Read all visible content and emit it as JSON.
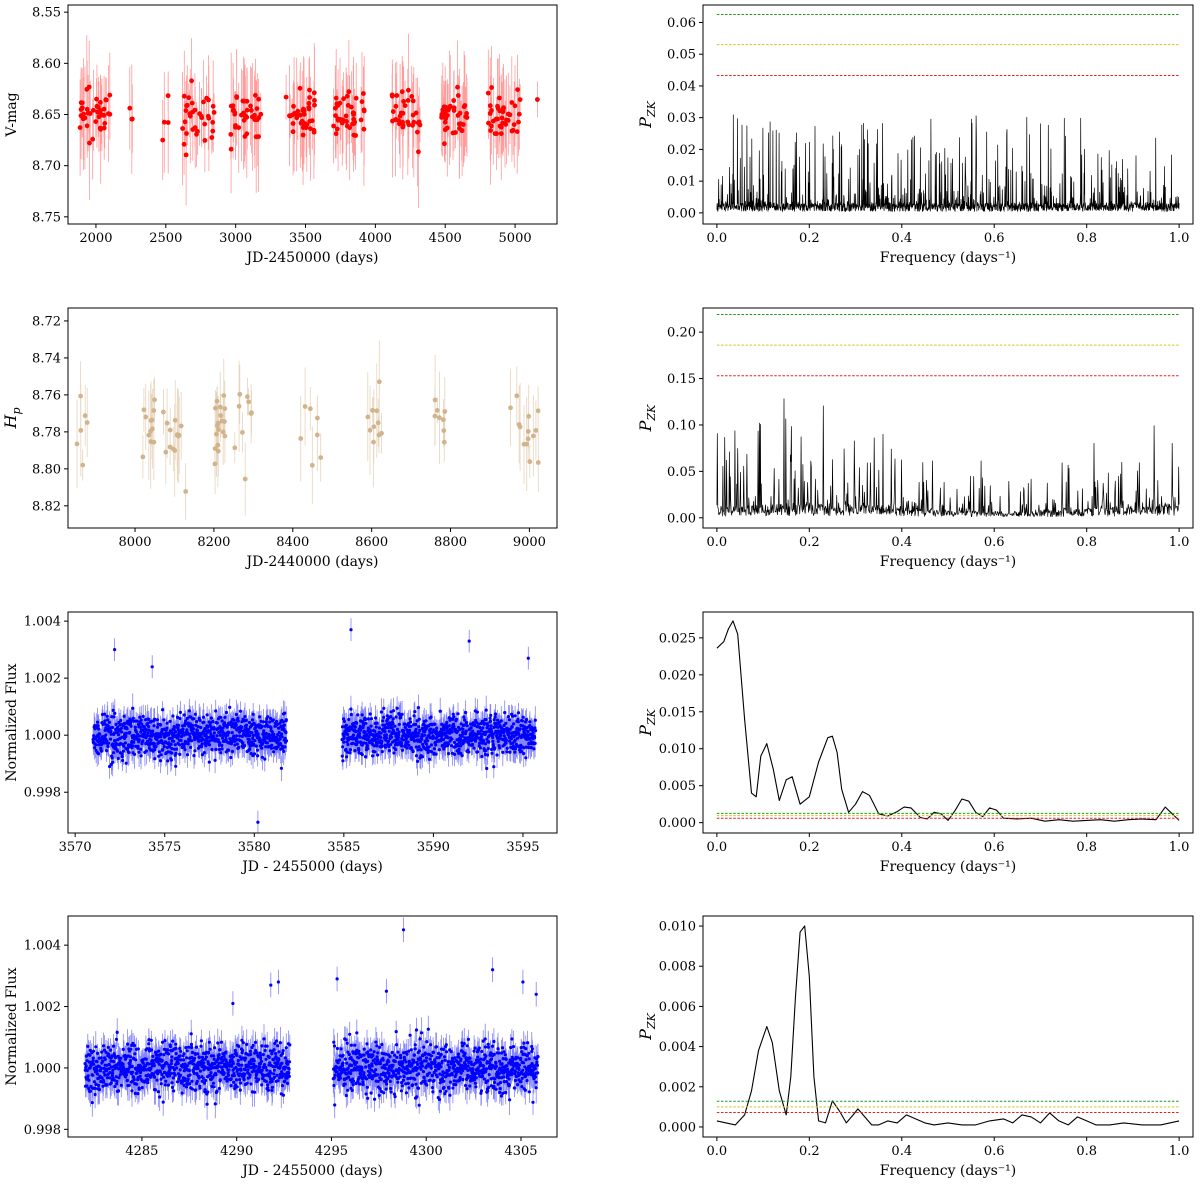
{
  "chart_data": [
    {
      "id": "p1",
      "type": "scatter",
      "title": "",
      "xlabel": "JD-2450000 (days)",
      "ylabel": "V-mag",
      "ylabel_style": "plain",
      "xlim": [
        1800,
        5300
      ],
      "ylim": [
        8.757,
        8.543
      ],
      "y_inverted": true,
      "xticks": [
        2000,
        2500,
        3000,
        3500,
        4000,
        4500,
        5000
      ],
      "yticks": [
        8.55,
        8.6,
        8.65,
        8.7,
        8.75
      ],
      "ytick_decimals": 2,
      "grid": false,
      "legend": "none",
      "marker_color": "#ff0000",
      "errorbar_color": "#ff8a8a",
      "series": [
        {
          "seasons": [
            [
              1880,
              2100,
              40
            ],
            [
              2230,
              2260,
              3
            ],
            [
              2470,
              2520,
              4
            ],
            [
              2620,
              2850,
              35
            ],
            [
              2960,
              3180,
              38
            ],
            [
              3360,
              3580,
              40
            ],
            [
              3700,
              3920,
              40
            ],
            [
              4110,
              4320,
              34
            ],
            [
              4450,
              4660,
              40
            ],
            [
              4800,
              5040,
              42
            ],
            [
              5160,
              5165,
              1
            ]
          ],
          "ymean": 8.65,
          "yspread": 0.012,
          "err_mean": 0.035,
          "err_max": 0.09
        }
      ]
    },
    {
      "id": "p2",
      "type": "line",
      "title": "",
      "xlabel": "Frequency (days⁻¹)",
      "ylabel": "P",
      "ylabel_sub": "ZK",
      "xlim": [
        -0.03,
        1.03
      ],
      "ylim": [
        -0.0035,
        0.0655
      ],
      "xticks": [
        0.0,
        0.2,
        0.4,
        0.6,
        0.8,
        1.0
      ],
      "yticks": [
        0.0,
        0.01,
        0.02,
        0.03,
        0.04,
        0.05,
        0.06
      ],
      "ytick_decimals": 2,
      "grid": false,
      "legend": "none",
      "series": [
        {
          "color": "#000000",
          "shape": "noise",
          "base": 0.003,
          "peak": 0.032,
          "npts": 1800
        }
      ],
      "thresholds": [
        {
          "value": 0.0625,
          "color": "#1a9e1a"
        },
        {
          "value": 0.053,
          "color": "#c9c91f"
        },
        {
          "value": 0.0433,
          "color": "#e62020"
        }
      ]
    },
    {
      "id": "p3",
      "type": "scatter",
      "title": "",
      "xlabel": "JD-2440000 (days)",
      "ylabel": "H",
      "ylabel_sub": "p",
      "xlim": [
        7830,
        9070
      ],
      "ylim": [
        8.832,
        8.713
      ],
      "y_inverted": true,
      "xticks": [
        8000,
        8200,
        8400,
        8600,
        8800,
        9000
      ],
      "yticks": [
        8.72,
        8.74,
        8.76,
        8.78,
        8.8,
        8.82
      ],
      "ytick_decimals": 2,
      "grid": false,
      "legend": "none",
      "marker_color": "#d2b48c",
      "errorbar_color": "#e2cdb0",
      "series": [
        {
          "seasons": [
            [
              7850,
              7880,
              6
            ],
            [
              8020,
              8050,
              12
            ],
            [
              8070,
              8130,
              14
            ],
            [
              8200,
              8230,
              18
            ],
            [
              8250,
              8300,
              9
            ],
            [
              8420,
              8480,
              7
            ],
            [
              8590,
              8650,
              10
            ],
            [
              8760,
              8790,
              8
            ],
            [
              8950,
              9030,
              14
            ]
          ],
          "ymean": 8.777,
          "yspread": 0.01,
          "err_mean": 0.016,
          "err_max": 0.04
        }
      ]
    },
    {
      "id": "p4",
      "type": "line",
      "title": "",
      "xlabel": "Frequency (days⁻¹)",
      "ylabel": "P",
      "ylabel_sub": "ZK",
      "xlim": [
        -0.03,
        1.03
      ],
      "ylim": [
        -0.011,
        0.226
      ],
      "xticks": [
        0.0,
        0.2,
        0.4,
        0.6,
        0.8,
        1.0
      ],
      "yticks": [
        0.0,
        0.05,
        0.1,
        0.15,
        0.2
      ],
      "ytick_decimals": 2,
      "grid": false,
      "legend": "none",
      "series": [
        {
          "color": "#000000",
          "shape": "noise",
          "base": 0.012,
          "peak": 0.11,
          "npts": 1000
        }
      ],
      "thresholds": [
        {
          "value": 0.219,
          "color": "#1a9e1a"
        },
        {
          "value": 0.186,
          "color": "#c9c91f"
        },
        {
          "value": 0.153,
          "color": "#e62020"
        }
      ]
    },
    {
      "id": "p5",
      "type": "scatter",
      "title": "",
      "xlabel": "JD - 2455000 (days)",
      "ylabel": "Normalized Flux",
      "ylabel_style": "plain",
      "xlim": [
        3569.6,
        3596.9
      ],
      "ylim": [
        0.99657,
        1.00432
      ],
      "xticks": [
        3570,
        3575,
        3580,
        3585,
        3590,
        3595
      ],
      "yticks": [
        0.998,
        1.0,
        1.002,
        1.004
      ],
      "ytick_decimals": 3,
      "grid": false,
      "legend": "none",
      "marker_color": "#0000ff",
      "errorbar_color": "#6f6fff",
      "series": [
        {
          "segments": [
            [
              3571.0,
              3581.8
            ],
            [
              3584.9,
              3595.7
            ]
          ],
          "ymean": 1.0,
          "yspread": 0.00035,
          "n_per_segment": 900,
          "err_mean": 0.0004,
          "outliers": [
            [
              3572.2,
              1.003
            ],
            [
              3574.3,
              1.0024
            ],
            [
              3580.2,
              0.99695
            ],
            [
              3585.4,
              1.0037
            ],
            [
              3592.0,
              1.0033
            ],
            [
              3595.3,
              1.0027
            ]
          ]
        }
      ]
    },
    {
      "id": "p6",
      "type": "line",
      "title": "",
      "xlabel": "Frequency (days⁻¹)",
      "ylabel": "P",
      "ylabel_sub": "ZK",
      "xlim": [
        -0.03,
        1.03
      ],
      "ylim": [
        -0.0014,
        0.0285
      ],
      "xticks": [
        0.0,
        0.2,
        0.4,
        0.6,
        0.8,
        1.0
      ],
      "yticks": [
        0.0,
        0.005,
        0.01,
        0.015,
        0.02,
        0.025
      ],
      "ytick_decimals": 3,
      "grid": false,
      "legend": "none",
      "series": [
        {
          "color": "#000000",
          "shape": "curve",
          "x": [
            0.0,
            0.015,
            0.025,
            0.035,
            0.045,
            0.06,
            0.075,
            0.085,
            0.095,
            0.108,
            0.122,
            0.135,
            0.15,
            0.163,
            0.18,
            0.2,
            0.22,
            0.24,
            0.25,
            0.26,
            0.27,
            0.285,
            0.3,
            0.315,
            0.33,
            0.35,
            0.37,
            0.39,
            0.405,
            0.42,
            0.44,
            0.455,
            0.47,
            0.485,
            0.5,
            0.515,
            0.53,
            0.545,
            0.56,
            0.575,
            0.59,
            0.605,
            0.62,
            0.65,
            0.68,
            0.71,
            0.74,
            0.77,
            0.8,
            0.83,
            0.86,
            0.89,
            0.92,
            0.95,
            0.97,
            0.985,
            1.0
          ],
          "y": [
            0.0236,
            0.0245,
            0.0262,
            0.0273,
            0.0255,
            0.014,
            0.004,
            0.0035,
            0.009,
            0.0107,
            0.0072,
            0.003,
            0.0058,
            0.0062,
            0.0025,
            0.0035,
            0.0082,
            0.0115,
            0.0117,
            0.0095,
            0.0045,
            0.0014,
            0.0025,
            0.0042,
            0.0037,
            0.0012,
            0.0009,
            0.0015,
            0.0021,
            0.002,
            0.0007,
            0.0005,
            0.0014,
            0.0012,
            0.0003,
            0.0016,
            0.0032,
            0.0029,
            0.0014,
            0.0008,
            0.002,
            0.0017,
            0.0006,
            0.0005,
            0.0006,
            0.0002,
            0.0004,
            0.0002,
            0.0003,
            0.0004,
            0.0002,
            0.0004,
            0.0005,
            0.0004,
            0.0021,
            0.0012,
            0.0003
          ]
        }
      ],
      "thresholds": [
        {
          "value": 0.00125,
          "color": "#1a9e1a"
        },
        {
          "value": 0.00095,
          "color": "#c9c91f"
        },
        {
          "value": 0.0006,
          "color": "#e62020"
        }
      ]
    },
    {
      "id": "p7",
      "type": "scatter",
      "title": "",
      "xlabel": "JD - 2455000 (days)",
      "ylabel": "Normalized Flux",
      "ylabel_style": "plain",
      "xlim": [
        4281.1,
        4306.9
      ],
      "ylim": [
        0.99775,
        1.00495
      ],
      "xticks": [
        4285,
        4290,
        4295,
        4300,
        4305
      ],
      "yticks": [
        0.998,
        1.0,
        1.002,
        1.004
      ],
      "ytick_decimals": 3,
      "grid": false,
      "legend": "none",
      "marker_color": "#0000ff",
      "errorbar_color": "#6f6fff",
      "series": [
        {
          "segments": [
            [
              4282.0,
              4292.8
            ],
            [
              4295.1,
              4305.9
            ]
          ],
          "ymean": 1.0,
          "yspread": 0.0004,
          "n_per_segment": 900,
          "err_mean": 0.0004,
          "outliers": [
            [
              4289.8,
              1.0021
            ],
            [
              4291.8,
              1.0027
            ],
            [
              4292.2,
              1.0028
            ],
            [
              4295.3,
              1.0029
            ],
            [
              4297.9,
              1.0025
            ],
            [
              4298.8,
              1.0045
            ],
            [
              4303.5,
              1.0032
            ],
            [
              4305.1,
              1.0028
            ],
            [
              4305.8,
              1.0024
            ]
          ]
        }
      ]
    },
    {
      "id": "p8",
      "type": "line",
      "title": "",
      "xlabel": "Frequency (days⁻¹)",
      "ylabel": "P",
      "ylabel_sub": "ZK",
      "xlim": [
        -0.03,
        1.03
      ],
      "ylim": [
        -0.0005,
        0.0105
      ],
      "xticks": [
        0.0,
        0.2,
        0.4,
        0.6,
        0.8,
        1.0
      ],
      "yticks": [
        0.0,
        0.002,
        0.004,
        0.006,
        0.008,
        0.01
      ],
      "ytick_decimals": 3,
      "grid": false,
      "legend": "none",
      "series": [
        {
          "color": "#000000",
          "shape": "curve",
          "x": [
            0.0,
            0.02,
            0.04,
            0.06,
            0.075,
            0.09,
            0.108,
            0.12,
            0.135,
            0.15,
            0.16,
            0.17,
            0.18,
            0.19,
            0.2,
            0.21,
            0.22,
            0.235,
            0.25,
            0.265,
            0.28,
            0.295,
            0.305,
            0.32,
            0.335,
            0.35,
            0.37,
            0.39,
            0.41,
            0.43,
            0.45,
            0.47,
            0.5,
            0.53,
            0.56,
            0.59,
            0.62,
            0.64,
            0.66,
            0.68,
            0.7,
            0.72,
            0.74,
            0.76,
            0.78,
            0.8,
            0.82,
            0.85,
            0.88,
            0.92,
            0.96,
            1.0
          ],
          "y": [
            0.0003,
            0.0002,
            0.0001,
            0.0006,
            0.0018,
            0.0038,
            0.005,
            0.0042,
            0.0018,
            0.0006,
            0.0025,
            0.0065,
            0.0097,
            0.01,
            0.0075,
            0.0025,
            0.0003,
            0.0002,
            0.0013,
            0.0008,
            0.0002,
            0.0006,
            0.0009,
            0.0005,
            0.0001,
            0.0001,
            0.0003,
            0.0002,
            0.0006,
            0.0004,
            0.0002,
            0.0001,
            0.0002,
            0.0001,
            0.0001,
            0.0003,
            0.0004,
            0.0002,
            0.0006,
            0.0005,
            0.0002,
            0.0007,
            0.0003,
            0.0001,
            0.0005,
            0.0003,
            0.0001,
            0.0001,
            0.0002,
            0.0001,
            0.0001,
            0.0003
          ]
        }
      ],
      "thresholds": [
        {
          "value": 0.00128,
          "color": "#1a9e1a"
        },
        {
          "value": 0.001,
          "color": "#c9c91f"
        },
        {
          "value": 0.00072,
          "color": "#e62020"
        }
      ]
    }
  ]
}
